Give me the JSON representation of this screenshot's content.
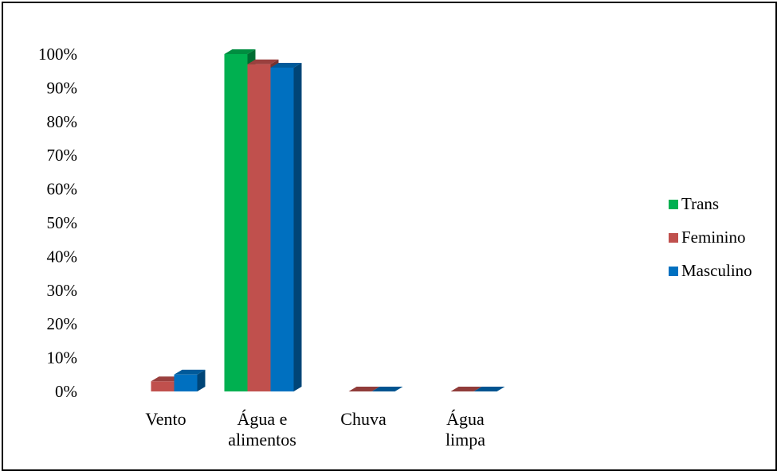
{
  "chart_data": {
    "type": "bar",
    "style": "3d-clustered-column",
    "categories": [
      [
        "Vento"
      ],
      [
        "Água e",
        "alimentos"
      ],
      [
        "Chuva"
      ],
      [
        "Água",
        "limpa"
      ]
    ],
    "series": [
      {
        "name": "Trans",
        "color": "#00b050",
        "values": [
          0,
          100,
          0,
          0
        ]
      },
      {
        "name": "Feminino",
        "color": "#c0504d",
        "values": [
          3,
          97,
          0,
          0
        ]
      },
      {
        "name": "Masculino",
        "color": "#0070c0",
        "values": [
          5,
          96,
          0,
          0
        ]
      }
    ],
    "ylim": [
      0,
      100
    ],
    "yticks": [
      "0%",
      "10%",
      "20%",
      "30%",
      "40%",
      "50%",
      "60%",
      "70%",
      "80%",
      "90%",
      "100%"
    ],
    "grid": false,
    "legend_position": "right"
  }
}
